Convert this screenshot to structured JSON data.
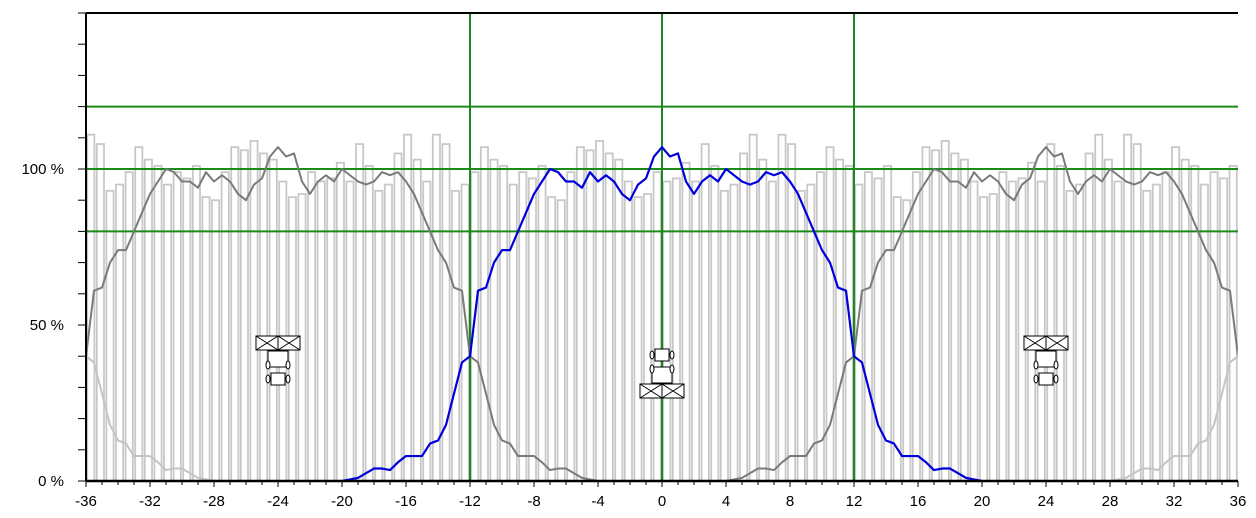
{
  "chart_data": {
    "type": "line",
    "xlim": [
      -36,
      36
    ],
    "ylim": [
      0,
      150
    ],
    "x_ticks": [
      -36,
      -32,
      -28,
      -24,
      -20,
      -16,
      -12,
      -8,
      -4,
      0,
      4,
      8,
      12,
      16,
      20,
      24,
      28,
      32,
      36
    ],
    "x_tick_labels": [
      "-36",
      "-32",
      "-28",
      "-24",
      "-20",
      "-16",
      "-12",
      "-8",
      "-4",
      "0",
      "4",
      "8",
      "12",
      "16",
      "20",
      "24",
      "28",
      "32",
      "36"
    ],
    "y_ticks": [
      0,
      50,
      100
    ],
    "y_tick_labels": [
      "0 %",
      "50 %",
      "100 %"
    ],
    "y_minor_ticks": [
      0,
      10,
      20,
      30,
      40,
      50,
      60,
      70,
      80,
      90,
      100,
      110,
      120,
      130,
      140,
      150
    ],
    "reference_lines_y": [
      80,
      100,
      120
    ],
    "reference_lines_x": [
      -12,
      0,
      12
    ],
    "grid": false,
    "colors": {
      "main_series": "#0000dd",
      "neighbor_series": "#7a7a7a",
      "far_series": "#c4c4c4",
      "bars": "#c8c8c8",
      "reference_lines": "#1a8a1a",
      "axis": "#000000"
    },
    "bars": {
      "x_start": -36,
      "width": 0.6,
      "heights": [
        111,
        108,
        93,
        95,
        99,
        107,
        103,
        101,
        95,
        99,
        97,
        101,
        91,
        90,
        99,
        107,
        106,
        109,
        105,
        103,
        96,
        91,
        92,
        99,
        96,
        97,
        102,
        96,
        108,
        101,
        93,
        95,
        105,
        111,
        103,
        96,
        111,
        108,
        93,
        95,
        99,
        107,
        103,
        101,
        95,
        99,
        97,
        101,
        91,
        90,
        99,
        107,
        106,
        109,
        105,
        103,
        96,
        91,
        92,
        99,
        96,
        97,
        102,
        96,
        108,
        101,
        93,
        95,
        105,
        111,
        103,
        96,
        111,
        108,
        93,
        95,
        99,
        107,
        103,
        101,
        95,
        99,
        97,
        101,
        91,
        90,
        99,
        107,
        106,
        109,
        105,
        103,
        96,
        91,
        92,
        99,
        96,
        97,
        102,
        96,
        108,
        101,
        93,
        95,
        105,
        111,
        103,
        96,
        111,
        108,
        93,
        95,
        99,
        107,
        103,
        101,
        95,
        99,
        97,
        101
      ]
    },
    "profile": {
      "x": [
        -20,
        -19.5,
        -19,
        -18.5,
        -18,
        -17.5,
        -17,
        -16.5,
        -16,
        -15.5,
        -15,
        -14.5,
        -14,
        -13.5,
        -13,
        -12.5,
        -12,
        -11.5,
        -11,
        -10.5,
        -10,
        -9.5,
        -9,
        -8.5,
        -8,
        -7.5,
        -7,
        -6.5,
        -6,
        -5.5,
        -5,
        -4.5,
        -4,
        -3.5,
        -3,
        -2.5,
        -2,
        -1.5,
        -1,
        -0.5,
        0,
        0.5,
        1,
        1.5,
        2,
        2.5,
        3,
        3.5,
        4,
        4.5,
        5,
        5.5,
        6,
        6.5,
        7,
        7.5,
        8,
        8.5,
        9,
        9.5,
        10,
        10.5,
        11,
        11.5,
        12,
        12.5,
        13,
        13.5,
        14,
        14.5,
        15,
        15.5,
        16,
        16.5,
        17,
        17.5,
        18,
        18.5,
        19,
        19.5,
        20
      ],
      "y": [
        0,
        0.5,
        1,
        2.5,
        4,
        4,
        3.5,
        6,
        8,
        8,
        8,
        12,
        13,
        18,
        28,
        38,
        40,
        61,
        62,
        70,
        74,
        74,
        80,
        86,
        92,
        96,
        100,
        99,
        96,
        96,
        94,
        99,
        96,
        98,
        96,
        92,
        90,
        95,
        97,
        104,
        107,
        104,
        105,
        96,
        92,
        96,
        98,
        96,
        100,
        98,
        96,
        95,
        96,
        99,
        98,
        99,
        96,
        92,
        86,
        80,
        74,
        70,
        62,
        61,
        40,
        38,
        28,
        18,
        13,
        12,
        8,
        8,
        8,
        6,
        3.5,
        4,
        4,
        2.5,
        1,
        0.5,
        0
      ]
    },
    "series": [
      {
        "offset": 0,
        "role": "main"
      },
      {
        "offset": -24,
        "role": "neighbor"
      },
      {
        "offset": 24,
        "role": "neighbor"
      },
      {
        "offset": -48,
        "role": "far"
      },
      {
        "offset": 48,
        "role": "far"
      }
    ],
    "machine_icons": [
      {
        "x": 0,
        "role": "main",
        "icon": "tractor-sprayer-icon"
      },
      {
        "x": -24,
        "role": "neighbor",
        "icon": "tractor-sprayer-icon"
      },
      {
        "x": 24,
        "role": "neighbor",
        "icon": "tractor-sprayer-icon"
      }
    ]
  }
}
